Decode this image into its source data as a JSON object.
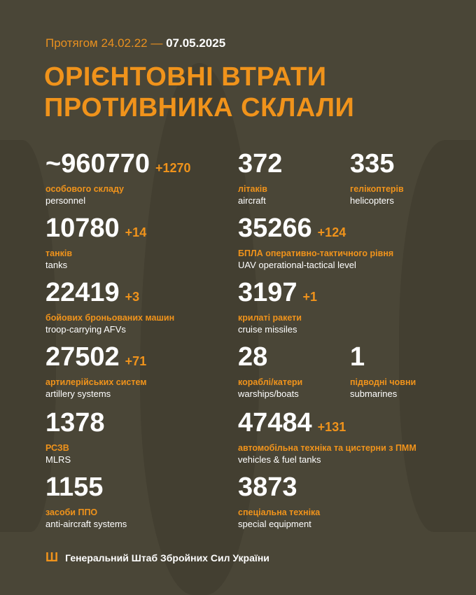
{
  "header": {
    "period_prefix": "Протягом 24.02.22 —",
    "date": "07.05.2025",
    "title_line1": "ОРІЄНТОВНІ ВТРАТИ",
    "title_line2": "ПРОТИВНИКА СКЛАЛИ"
  },
  "stats": [
    {
      "value": "~960770",
      "delta": "+1270",
      "ua": "особового складу",
      "en": "personnel"
    },
    {
      "value": "372",
      "delta": "",
      "ua": "літаків",
      "en": "aircraft"
    },
    {
      "value": "335",
      "delta": "",
      "ua": "гелікоптерів",
      "en": "helicopters"
    },
    {
      "value": "10780",
      "delta": "+14",
      "ua": "танків",
      "en": "tanks"
    },
    {
      "value": "35266",
      "delta": "+124",
      "ua": "БПЛА оперативно-тактичного рівня",
      "en": "UAV operational-tactical level"
    },
    {
      "value": "22419",
      "delta": "+3",
      "ua": "бойових броньованих машин",
      "en": "troop-carrying AFVs"
    },
    {
      "value": "3197",
      "delta": "+1",
      "ua": "крилаті ракети",
      "en": "cruise missiles"
    },
    {
      "value": "27502",
      "delta": "+71",
      "ua": "артилерійських систем",
      "en": "artillery systems"
    },
    {
      "value": "28",
      "delta": "",
      "ua": "кораблі/катери",
      "en": "warships/boats"
    },
    {
      "value": "1",
      "delta": "",
      "ua": "підводні човни",
      "en": "submarines"
    },
    {
      "value": "1378",
      "delta": "",
      "ua": "РСЗВ",
      "en": "MLRS"
    },
    {
      "value": "47484",
      "delta": "+131",
      "ua": "автомобільна техніка та цистерни з ПММ",
      "en": "vehicles & fuel tanks"
    },
    {
      "value": "1155",
      "delta": "",
      "ua": "засоби ППО",
      "en": "anti-aircraft systems"
    },
    {
      "value": "3873",
      "delta": "",
      "ua": "спеціальна техніка",
      "en": "special equipment"
    }
  ],
  "footer": {
    "text": "Генеральний Штаб Збройних Сил України",
    "icon": "trident-icon"
  },
  "colors": {
    "background": "#4a4637",
    "accent": "#f0931b",
    "text": "#ffffff"
  }
}
